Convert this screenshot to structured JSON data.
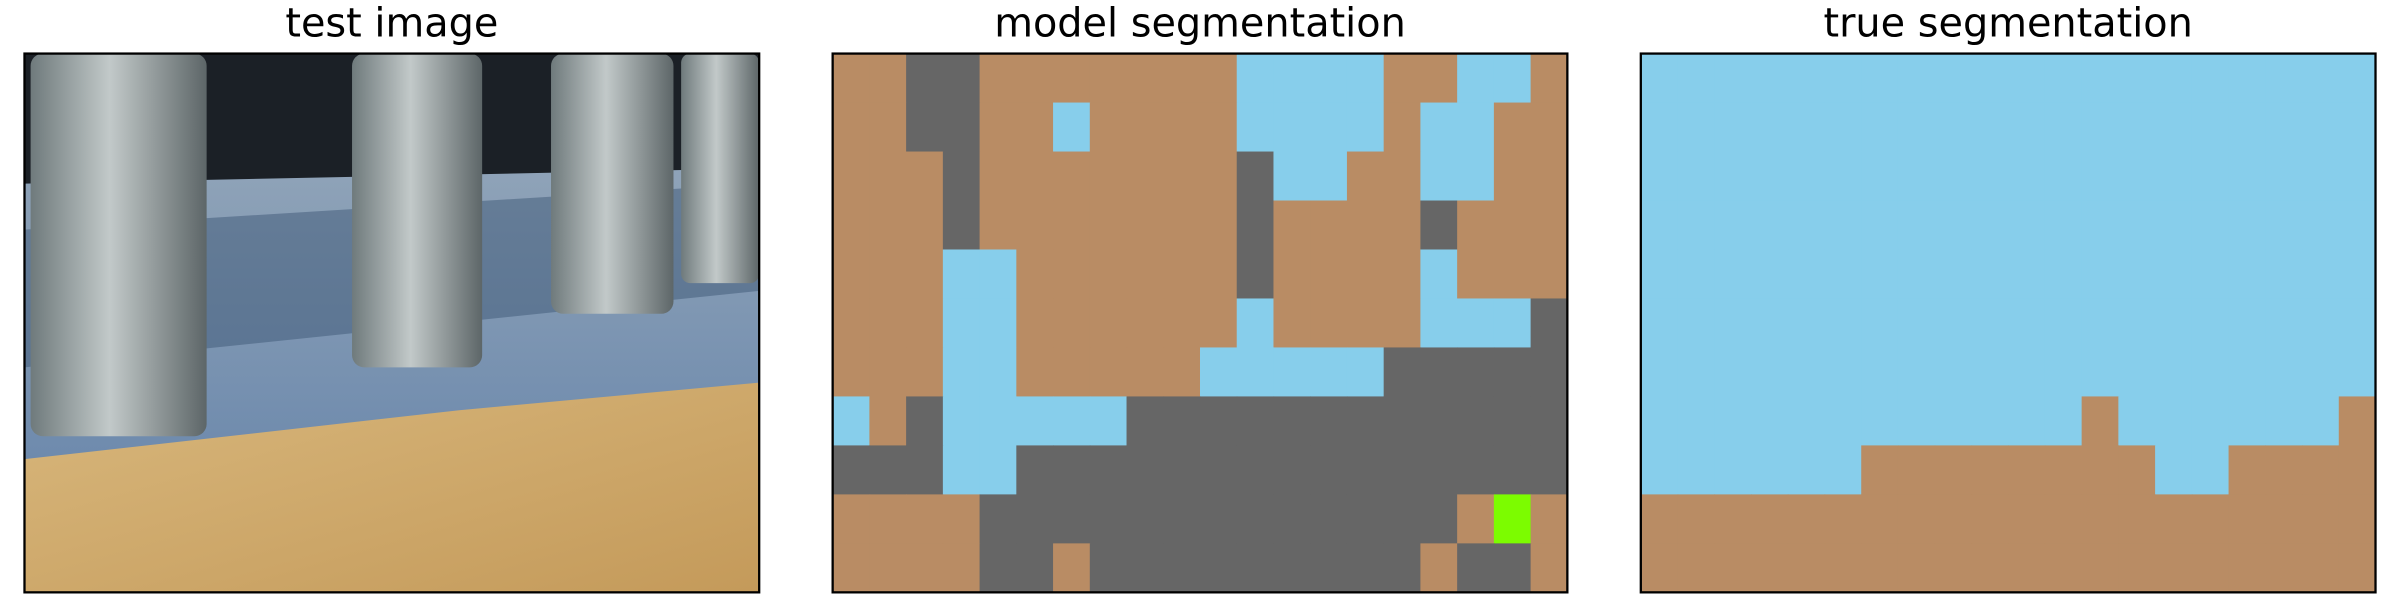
{
  "panels": [
    {
      "title": "test image"
    },
    {
      "title": "model segmentation"
    },
    {
      "title": "true segmentation"
    }
  ]
}
